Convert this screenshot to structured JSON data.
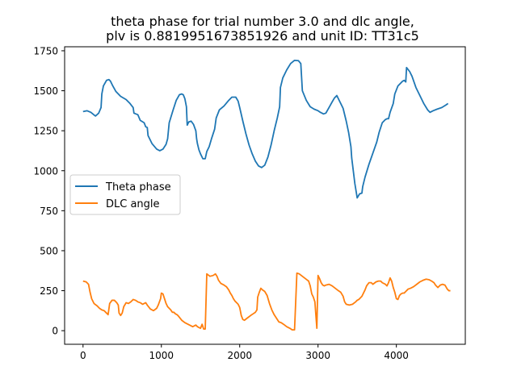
{
  "chart_data": {
    "type": "line",
    "title_lines": [
      "theta phase for trial number 3.0 and dlc angle,",
      "plv is 0.8819951673851926 and unit ID: TT31c5"
    ],
    "xlabel": "",
    "ylabel": "",
    "xlim": [
      -235,
      4880
    ],
    "ylim": [
      -85,
      1775
    ],
    "xticks": [
      0,
      1000,
      2000,
      3000,
      4000
    ],
    "yticks": [
      0,
      250,
      500,
      750,
      1000,
      1250,
      1500,
      1750
    ],
    "grid": false,
    "legend": {
      "placement": "center-left"
    },
    "series": [
      {
        "name": "Theta phase",
        "color": "#1f77b4",
        "points": [
          [
            0,
            1370
          ],
          [
            50,
            1375
          ],
          [
            100,
            1365
          ],
          [
            150,
            1345
          ],
          [
            160,
            1342
          ],
          [
            200,
            1360
          ],
          [
            230,
            1395
          ],
          [
            240,
            1480
          ],
          [
            260,
            1530
          ],
          [
            300,
            1565
          ],
          [
            330,
            1570
          ],
          [
            350,
            1560
          ],
          [
            380,
            1530
          ],
          [
            420,
            1495
          ],
          [
            480,
            1465
          ],
          [
            550,
            1445
          ],
          [
            600,
            1420
          ],
          [
            640,
            1395
          ],
          [
            650,
            1360
          ],
          [
            700,
            1350
          ],
          [
            730,
            1315
          ],
          [
            780,
            1300
          ],
          [
            800,
            1275
          ],
          [
            820,
            1270
          ],
          [
            830,
            1220
          ],
          [
            880,
            1170
          ],
          [
            940,
            1135
          ],
          [
            980,
            1125
          ],
          [
            1020,
            1135
          ],
          [
            1060,
            1165
          ],
          [
            1080,
            1200
          ],
          [
            1100,
            1300
          ],
          [
            1150,
            1380
          ],
          [
            1190,
            1440
          ],
          [
            1230,
            1475
          ],
          [
            1260,
            1480
          ],
          [
            1280,
            1475
          ],
          [
            1300,
            1450
          ],
          [
            1320,
            1400
          ],
          [
            1330,
            1285
          ],
          [
            1350,
            1305
          ],
          [
            1380,
            1310
          ],
          [
            1410,
            1290
          ],
          [
            1440,
            1250
          ],
          [
            1450,
            1200
          ],
          [
            1460,
            1170
          ],
          [
            1480,
            1130
          ],
          [
            1500,
            1105
          ],
          [
            1530,
            1075
          ],
          [
            1560,
            1075
          ],
          [
            1580,
            1120
          ],
          [
            1610,
            1150
          ],
          [
            1640,
            1200
          ],
          [
            1680,
            1260
          ],
          [
            1700,
            1330
          ],
          [
            1740,
            1380
          ],
          [
            1800,
            1405
          ],
          [
            1860,
            1440
          ],
          [
            1900,
            1460
          ],
          [
            1950,
            1460
          ],
          [
            1980,
            1435
          ],
          [
            2000,
            1395
          ],
          [
            2040,
            1310
          ],
          [
            2080,
            1230
          ],
          [
            2120,
            1160
          ],
          [
            2160,
            1105
          ],
          [
            2200,
            1060
          ],
          [
            2240,
            1030
          ],
          [
            2280,
            1020
          ],
          [
            2320,
            1035
          ],
          [
            2360,
            1085
          ],
          [
            2400,
            1160
          ],
          [
            2440,
            1250
          ],
          [
            2480,
            1330
          ],
          [
            2510,
            1400
          ],
          [
            2520,
            1520
          ],
          [
            2550,
            1580
          ],
          [
            2600,
            1630
          ],
          [
            2650,
            1670
          ],
          [
            2700,
            1690
          ],
          [
            2750,
            1688
          ],
          [
            2780,
            1670
          ],
          [
            2800,
            1500
          ],
          [
            2850,
            1440
          ],
          [
            2900,
            1400
          ],
          [
            2950,
            1385
          ],
          [
            3000,
            1375
          ],
          [
            3030,
            1365
          ],
          [
            3070,
            1355
          ],
          [
            3100,
            1360
          ],
          [
            3140,
            1395
          ],
          [
            3180,
            1430
          ],
          [
            3210,
            1455
          ],
          [
            3240,
            1470
          ],
          [
            3270,
            1440
          ],
          [
            3320,
            1390
          ],
          [
            3360,
            1310
          ],
          [
            3390,
            1240
          ],
          [
            3420,
            1150
          ],
          [
            3430,
            1080
          ],
          [
            3450,
            1000
          ],
          [
            3470,
            920
          ],
          [
            3490,
            860
          ],
          [
            3500,
            830
          ],
          [
            3530,
            855
          ],
          [
            3560,
            860
          ],
          [
            3570,
            900
          ],
          [
            3600,
            960
          ],
          [
            3650,
            1040
          ],
          [
            3700,
            1110
          ],
          [
            3750,
            1180
          ],
          [
            3780,
            1240
          ],
          [
            3820,
            1300
          ],
          [
            3860,
            1320
          ],
          [
            3880,
            1325
          ],
          [
            3900,
            1325
          ],
          [
            3920,
            1365
          ],
          [
            3960,
            1420
          ],
          [
            3980,
            1480
          ],
          [
            4020,
            1530
          ],
          [
            4060,
            1550
          ],
          [
            4080,
            1560
          ],
          [
            4100,
            1565
          ],
          [
            4120,
            1555
          ],
          [
            4130,
            1645
          ],
          [
            4170,
            1620
          ],
          [
            4200,
            1590
          ],
          [
            4250,
            1520
          ],
          [
            4300,
            1470
          ],
          [
            4350,
            1420
          ],
          [
            4400,
            1380
          ],
          [
            4430,
            1365
          ],
          [
            4470,
            1375
          ],
          [
            4520,
            1385
          ],
          [
            4580,
            1395
          ],
          [
            4630,
            1410
          ],
          [
            4660,
            1420
          ]
        ]
      },
      {
        "name": "DLC angle",
        "color": "#ff7f0e",
        "points": [
          [
            0,
            310
          ],
          [
            40,
            305
          ],
          [
            70,
            290
          ],
          [
            90,
            240
          ],
          [
            110,
            200
          ],
          [
            140,
            170
          ],
          [
            180,
            155
          ],
          [
            210,
            140
          ],
          [
            240,
            130
          ],
          [
            270,
            125
          ],
          [
            300,
            110
          ],
          [
            320,
            100
          ],
          [
            340,
            170
          ],
          [
            370,
            190
          ],
          [
            400,
            190
          ],
          [
            430,
            175
          ],
          [
            450,
            160
          ],
          [
            460,
            110
          ],
          [
            480,
            95
          ],
          [
            500,
            110
          ],
          [
            520,
            150
          ],
          [
            550,
            175
          ],
          [
            580,
            170
          ],
          [
            610,
            180
          ],
          [
            640,
            195
          ],
          [
            670,
            190
          ],
          [
            700,
            180
          ],
          [
            730,
            175
          ],
          [
            760,
            165
          ],
          [
            780,
            170
          ],
          [
            800,
            175
          ],
          [
            820,
            160
          ],
          [
            860,
            135
          ],
          [
            900,
            125
          ],
          [
            940,
            140
          ],
          [
            960,
            160
          ],
          [
            990,
            200
          ],
          [
            1000,
            235
          ],
          [
            1020,
            230
          ],
          [
            1040,
            200
          ],
          [
            1060,
            170
          ],
          [
            1080,
            150
          ],
          [
            1100,
            140
          ],
          [
            1120,
            130
          ],
          [
            1140,
            115
          ],
          [
            1160,
            115
          ],
          [
            1180,
            105
          ],
          [
            1200,
            100
          ],
          [
            1220,
            90
          ],
          [
            1260,
            65
          ],
          [
            1300,
            50
          ],
          [
            1340,
            40
          ],
          [
            1360,
            35
          ],
          [
            1380,
            30
          ],
          [
            1400,
            25
          ],
          [
            1420,
            30
          ],
          [
            1440,
            35
          ],
          [
            1460,
            25
          ],
          [
            1480,
            20
          ],
          [
            1500,
            15
          ],
          [
            1520,
            40
          ],
          [
            1540,
            10
          ],
          [
            1560,
            10
          ],
          [
            1580,
            355
          ],
          [
            1620,
            340
          ],
          [
            1660,
            345
          ],
          [
            1690,
            355
          ],
          [
            1710,
            340
          ],
          [
            1730,
            315
          ],
          [
            1760,
            295
          ],
          [
            1800,
            285
          ],
          [
            1830,
            275
          ],
          [
            1860,
            255
          ],
          [
            1880,
            235
          ],
          [
            1900,
            220
          ],
          [
            1920,
            200
          ],
          [
            1940,
            185
          ],
          [
            1960,
            175
          ],
          [
            1980,
            165
          ],
          [
            2000,
            145
          ],
          [
            2010,
            120
          ],
          [
            2020,
            95
          ],
          [
            2040,
            70
          ],
          [
            2060,
            65
          ],
          [
            2100,
            80
          ],
          [
            2140,
            95
          ],
          [
            2170,
            105
          ],
          [
            2200,
            115
          ],
          [
            2220,
            130
          ],
          [
            2230,
            210
          ],
          [
            2250,
            240
          ],
          [
            2270,
            265
          ],
          [
            2290,
            255
          ],
          [
            2320,
            245
          ],
          [
            2350,
            220
          ],
          [
            2380,
            170
          ],
          [
            2410,
            130
          ],
          [
            2440,
            100
          ],
          [
            2480,
            70
          ],
          [
            2500,
            55
          ],
          [
            2530,
            50
          ],
          [
            2560,
            40
          ],
          [
            2600,
            25
          ],
          [
            2640,
            15
          ],
          [
            2670,
            5
          ],
          [
            2700,
            5
          ],
          [
            2730,
            360
          ],
          [
            2760,
            355
          ],
          [
            2800,
            340
          ],
          [
            2840,
            325
          ],
          [
            2880,
            310
          ],
          [
            2900,
            280
          ],
          [
            2920,
            230
          ],
          [
            2940,
            210
          ],
          [
            2960,
            180
          ],
          [
            2975,
            80
          ],
          [
            2985,
            15
          ],
          [
            3000,
            345
          ],
          [
            3020,
            325
          ],
          [
            3040,
            300
          ],
          [
            3060,
            285
          ],
          [
            3080,
            280
          ],
          [
            3100,
            285
          ],
          [
            3140,
            290
          ],
          [
            3180,
            280
          ],
          [
            3220,
            265
          ],
          [
            3260,
            250
          ],
          [
            3290,
            240
          ],
          [
            3320,
            215
          ],
          [
            3340,
            180
          ],
          [
            3360,
            165
          ],
          [
            3400,
            160
          ],
          [
            3440,
            165
          ],
          [
            3480,
            180
          ],
          [
            3500,
            190
          ],
          [
            3520,
            195
          ],
          [
            3560,
            215
          ],
          [
            3600,
            255
          ],
          [
            3620,
            280
          ],
          [
            3650,
            300
          ],
          [
            3680,
            300
          ],
          [
            3700,
            290
          ],
          [
            3740,
            305
          ],
          [
            3770,
            310
          ],
          [
            3800,
            310
          ],
          [
            3820,
            300
          ],
          [
            3860,
            290
          ],
          [
            3880,
            280
          ],
          [
            3900,
            300
          ],
          [
            3920,
            330
          ],
          [
            3940,
            310
          ],
          [
            3960,
            270
          ],
          [
            3980,
            240
          ],
          [
            4000,
            200
          ],
          [
            4020,
            195
          ],
          [
            4040,
            220
          ],
          [
            4060,
            230
          ],
          [
            4080,
            235
          ],
          [
            4100,
            235
          ],
          [
            4120,
            245
          ],
          [
            4150,
            260
          ],
          [
            4180,
            265
          ],
          [
            4220,
            275
          ],
          [
            4260,
            290
          ],
          [
            4300,
            305
          ],
          [
            4340,
            315
          ],
          [
            4380,
            322
          ],
          [
            4420,
            318
          ],
          [
            4450,
            310
          ],
          [
            4480,
            300
          ],
          [
            4500,
            285
          ],
          [
            4530,
            270
          ],
          [
            4560,
            285
          ],
          [
            4590,
            290
          ],
          [
            4620,
            285
          ],
          [
            4650,
            260
          ],
          [
            4670,
            250
          ],
          [
            4690,
            250
          ]
        ]
      }
    ]
  }
}
